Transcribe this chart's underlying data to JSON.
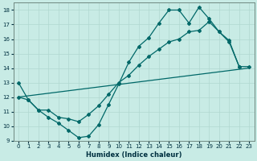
{
  "xlabel": "Humidex (Indice chaleur)",
  "xlim": [
    -0.5,
    23.5
  ],
  "ylim": [
    9,
    18.5
  ],
  "yticks": [
    9,
    10,
    11,
    12,
    13,
    14,
    15,
    16,
    17,
    18
  ],
  "xticks": [
    0,
    1,
    2,
    3,
    4,
    5,
    6,
    7,
    8,
    9,
    10,
    11,
    12,
    13,
    14,
    15,
    16,
    17,
    18,
    19,
    20,
    21,
    22,
    23
  ],
  "background_color": "#c8ebe5",
  "grid_color": "#b0d8d0",
  "line_color": "#006868",
  "line1_x": [
    0,
    1,
    2,
    3,
    4,
    5,
    6,
    7,
    8,
    9,
    10,
    11,
    12,
    13,
    14,
    15,
    16,
    17,
    18,
    19,
    20,
    21,
    22
  ],
  "line1_y": [
    13.0,
    11.8,
    11.1,
    10.6,
    10.2,
    9.7,
    9.2,
    9.3,
    10.1,
    11.5,
    12.9,
    14.4,
    15.5,
    16.1,
    17.1,
    18.0,
    18.0,
    17.1,
    18.2,
    17.4,
    16.5,
    15.9,
    14.1
  ],
  "line2_x": [
    0,
    1,
    2,
    3,
    4,
    5,
    6,
    7,
    8,
    9,
    10,
    11,
    12,
    13,
    14,
    15,
    16,
    17,
    18,
    19,
    20,
    21,
    22,
    23
  ],
  "line2_y": [
    12.0,
    11.8,
    11.1,
    11.1,
    10.6,
    10.5,
    10.3,
    10.8,
    11.4,
    12.2,
    13.0,
    13.5,
    14.2,
    14.8,
    15.3,
    15.8,
    16.0,
    16.5,
    16.6,
    17.2,
    16.5,
    15.8,
    14.1,
    14.1
  ],
  "line3_x": [
    0,
    23
  ],
  "line3_y": [
    12.0,
    14.0
  ]
}
